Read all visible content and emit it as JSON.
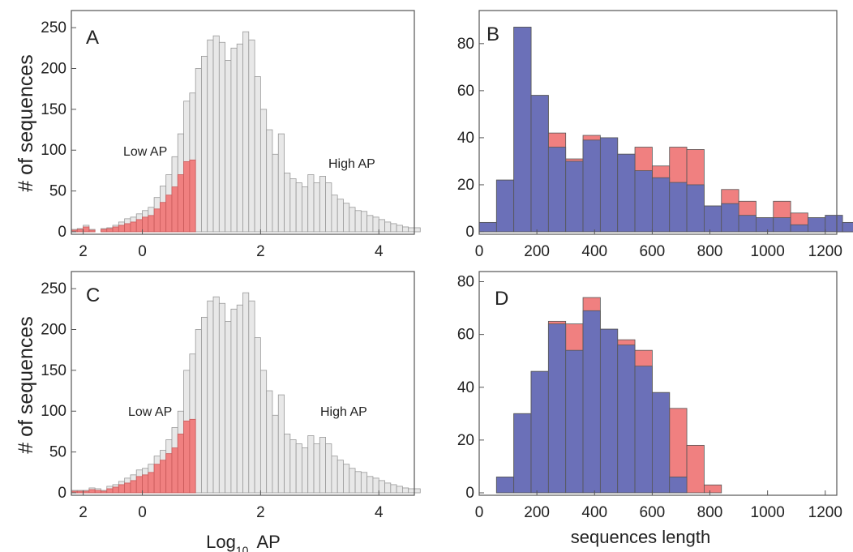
{
  "colors": {
    "low_ap": "#f08080",
    "high_ap": "#6b70b8",
    "background_hist": "#e8e8e8",
    "length_red": "#f08080",
    "length_blue": "#6b70b8"
  },
  "chart_data": [
    {
      "panel": "A",
      "type": "bar",
      "ylabel": "# of sequences",
      "xlim": [
        -1.2,
        4.6
      ],
      "ylim": [
        0,
        265
      ],
      "xticks": [
        0,
        2,
        4
      ],
      "xtick_labels": [
        "2",
        "0",
        "2",
        "4"
      ],
      "yticks": [
        0,
        50,
        100,
        150,
        200,
        250
      ],
      "annotations": [
        "Low AP",
        "High AP"
      ],
      "bin_start": -1.2,
      "bin_width": 0.1,
      "series": [
        {
          "name": "Low AP",
          "role": "low",
          "values": [
            2,
            3,
            6,
            2,
            0,
            3,
            4,
            6,
            8,
            10,
            12,
            15,
            18,
            20,
            28,
            36,
            45,
            55,
            70,
            86,
            88,
            0,
            0,
            0,
            0,
            0,
            0,
            0,
            0,
            0,
            0,
            0,
            0,
            0,
            0,
            0,
            0,
            0,
            0,
            0,
            0,
            0,
            0,
            0,
            0,
            0,
            0,
            0,
            0,
            0,
            0,
            0,
            0,
            0,
            0,
            0,
            0,
            0,
            0
          ]
        },
        {
          "name": "High AP",
          "role": "high",
          "values": [
            0,
            0,
            0,
            0,
            0,
            0,
            0,
            0,
            0,
            0,
            0,
            0,
            0,
            0,
            0,
            0,
            0,
            0,
            0,
            0,
            0,
            0,
            0,
            0,
            0,
            0,
            0,
            0,
            0,
            0,
            0,
            0,
            0,
            0,
            0,
            0,
            0,
            0,
            0,
            0,
            0,
            0,
            0,
            0,
            0,
            0,
            0,
            0,
            0,
            0,
            0,
            0,
            0,
            0,
            0,
            0,
            0,
            0,
            0
          ]
        },
        {
          "name": "All",
          "role": "background",
          "values": [
            3,
            4,
            8,
            3,
            0,
            4,
            5,
            8,
            12,
            16,
            18,
            22,
            26,
            30,
            42,
            56,
            70,
            92,
            120,
            160,
            170,
            200,
            215,
            235,
            240,
            232,
            210,
            225,
            230,
            245,
            235,
            190,
            150,
            125,
            95,
            120,
            72,
            65,
            60,
            55,
            70,
            60,
            68,
            60,
            45,
            40,
            35,
            30,
            26,
            25,
            20,
            18,
            15,
            12,
            10,
            8,
            6,
            5,
            5
          ]
        }
      ]
    },
    {
      "panel": "B",
      "type": "bar",
      "xlim": [
        0,
        1240
      ],
      "ylim": [
        0,
        92
      ],
      "xticks": [
        0,
        200,
        400,
        600,
        800,
        1000,
        1200
      ],
      "yticks": [
        0,
        20,
        40,
        60,
        80
      ],
      "bin_start": 0,
      "bin_width": 60,
      "series": [
        {
          "name": "blue",
          "values": [
            4,
            22,
            87,
            58,
            36,
            30,
            39,
            40,
            33,
            26,
            23,
            21,
            20,
            11,
            12,
            7,
            6,
            6,
            3,
            6,
            7,
            4,
            3,
            5
          ]
        },
        {
          "name": "red",
          "values": [
            4,
            22,
            87,
            58,
            42,
            31,
            41,
            40,
            33,
            36,
            28,
            36,
            35,
            11,
            18,
            13,
            6,
            13,
            8,
            6,
            7,
            4,
            8,
            5
          ]
        }
      ]
    },
    {
      "panel": "C",
      "type": "bar",
      "ylabel": "# of sequences",
      "xlabel": "Log10  AP",
      "xlabel_main": "Log",
      "xlabel_sub": "10",
      "xlabel_tail": "AP",
      "xlim": [
        -1.2,
        4.6
      ],
      "ylim": [
        0,
        265
      ],
      "xticks": [
        0,
        2,
        4
      ],
      "xtick_labels": [
        "2",
        "0",
        "2",
        "4"
      ],
      "yticks": [
        0,
        50,
        100,
        150,
        200,
        250
      ],
      "annotations": [
        "Low AP",
        "High AP"
      ],
      "bin_start": -1.2,
      "bin_width": 0.1,
      "series": [
        {
          "name": "Low AP",
          "role": "low",
          "values": [
            2,
            2,
            2,
            4,
            3,
            2,
            5,
            7,
            10,
            12,
            15,
            20,
            22,
            25,
            35,
            40,
            48,
            55,
            72,
            88,
            90,
            0,
            0,
            0,
            0,
            0,
            0,
            0,
            0,
            0,
            0,
            0,
            0,
            0,
            0,
            0,
            0,
            0,
            0,
            0,
            0,
            0,
            0,
            0,
            0,
            0,
            0,
            0,
            0,
            0,
            0,
            0,
            0,
            0,
            0,
            0,
            0,
            0,
            0
          ]
        },
        {
          "name": "High AP",
          "role": "high",
          "values": [
            0,
            0,
            0,
            0,
            0,
            0,
            0,
            0,
            0,
            0,
            0,
            0,
            0,
            0,
            0,
            0,
            0,
            0,
            0,
            0,
            0,
            0,
            0,
            0,
            0,
            0,
            0,
            0,
            0,
            0,
            0,
            0,
            0,
            0,
            0,
            0,
            0,
            0,
            0,
            0,
            0,
            0,
            0,
            0,
            0,
            0,
            0,
            0,
            0,
            0,
            0,
            0,
            0,
            0,
            0,
            0,
            0,
            0,
            0
          ]
        },
        {
          "name": "All",
          "role": "background",
          "values": [
            3,
            3,
            3,
            6,
            5,
            3,
            8,
            10,
            14,
            18,
            22,
            28,
            30,
            35,
            45,
            52,
            65,
            80,
            100,
            150,
            170,
            200,
            215,
            235,
            240,
            232,
            210,
            225,
            230,
            245,
            235,
            190,
            150,
            125,
            95,
            120,
            72,
            65,
            60,
            55,
            70,
            60,
            68,
            60,
            45,
            40,
            35,
            30,
            26,
            25,
            20,
            18,
            15,
            12,
            10,
            8,
            6,
            5,
            5
          ]
        }
      ]
    },
    {
      "panel": "D",
      "type": "bar",
      "xlabel": "sequences length",
      "xlim": [
        0,
        1240
      ],
      "ylim": [
        0,
        82
      ],
      "xticks": [
        0,
        200,
        400,
        600,
        800,
        1000,
        1200
      ],
      "yticks": [
        0,
        20,
        40,
        60,
        80
      ],
      "bin_start": 0,
      "bin_width": 60,
      "series": [
        {
          "name": "blue",
          "values": [
            0,
            6,
            30,
            46,
            64,
            54,
            69,
            62,
            56,
            48,
            38,
            6,
            0,
            0,
            0,
            0,
            0,
            0,
            0,
            0,
            0,
            0,
            0,
            0
          ]
        },
        {
          "name": "red",
          "values": [
            0,
            6,
            30,
            46,
            65,
            64,
            74,
            62,
            58,
            54,
            38,
            32,
            18,
            3,
            0,
            0,
            0,
            0,
            0,
            0,
            0,
            0,
            0,
            0
          ]
        }
      ]
    }
  ]
}
